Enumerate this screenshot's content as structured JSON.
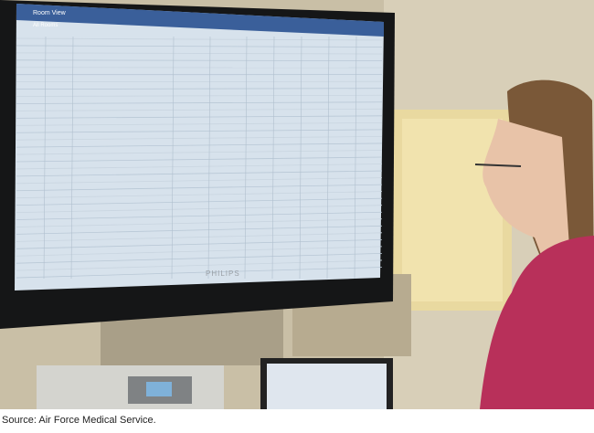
{
  "caption": "Source: Air Force Medical Service.",
  "monitor": {
    "brand": "PHILIPS",
    "tab": "Room View",
    "filter": "All Rooms"
  }
}
